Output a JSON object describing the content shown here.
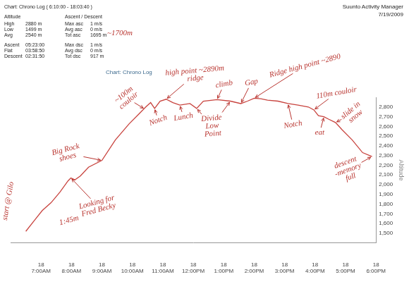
{
  "header": {
    "title": "Chart: Chrono Log ( 6:10:00 - 18:03:40 )",
    "app": "Suunto Activity Manager",
    "date": "7/19/2009",
    "note": "~1700m",
    "tables": [
      {
        "heading": "Altitude",
        "rows": [
          [
            "High",
            "2880 m"
          ],
          [
            "Low",
            "1499 m"
          ],
          [
            "Avg",
            "2540 m"
          ],
          [
            "Ascent",
            "05:23:00"
          ],
          [
            "Flat",
            "03:58:50"
          ],
          [
            "Descent",
            "02:31:50"
          ]
        ]
      },
      {
        "heading": "Ascent / Descent",
        "rows": [
          [
            "Max asc",
            "1 m/s"
          ],
          [
            "Avg asc",
            "0 m/s"
          ],
          [
            "Tot asc",
            "1695 m"
          ],
          [
            "Max dsc",
            "1 m/s"
          ],
          [
            "Avg dsc",
            "0 m/s"
          ],
          [
            "Tot dsc",
            "917 m"
          ]
        ]
      }
    ]
  },
  "chart_data": {
    "type": "line",
    "title": "Chart: Chrono Log",
    "y_label": "Altitude",
    "color": "#c8433e",
    "grid": false,
    "x": [
      6.5,
      6.78,
      7.04,
      7.33,
      7.62,
      7.89,
      7.98,
      8.11,
      8.29,
      8.56,
      9.0,
      9.44,
      9.89,
      10.22,
      10.44,
      10.6,
      10.73,
      10.91,
      11.11,
      11.33,
      11.56,
      11.89,
      12.11,
      12.33,
      12.78,
      13.22,
      13.56,
      13.78,
      14.0,
      14.22,
      14.44,
      14.78,
      15.11,
      15.44,
      15.78,
      15.96,
      16.11,
      16.29,
      16.44,
      16.67,
      16.89,
      17.22,
      17.56,
      17.87
    ],
    "values": [
      1520,
      1632,
      1734,
      1815,
      1924,
      2041,
      2070,
      2050,
      2090,
      2180,
      2250,
      2460,
      2625,
      2730,
      2800,
      2845,
      2785,
      2860,
      2880,
      2845,
      2820,
      2835,
      2785,
      2860,
      2875,
      2860,
      2835,
      2860,
      2890,
      2885,
      2870,
      2860,
      2835,
      2820,
      2800,
      2770,
      2710,
      2700,
      2675,
      2640,
      2565,
      2460,
      2330,
      2290
    ],
    "xlim": [
      6,
      18
    ],
    "xticks": [
      {
        "value": 7,
        "label": [
          "18",
          "7:00AM"
        ]
      },
      {
        "value": 8,
        "label": [
          "18",
          "8:00AM"
        ]
      },
      {
        "value": 9,
        "label": [
          "18",
          "9:00AM"
        ]
      },
      {
        "value": 10,
        "label": [
          "18",
          "10:00AM"
        ]
      },
      {
        "value": 11,
        "label": [
          "18",
          "11:00AM"
        ]
      },
      {
        "value": 12,
        "label": [
          "18",
          "12:00PM"
        ]
      },
      {
        "value": 13,
        "label": [
          "18",
          "1:00PM"
        ]
      },
      {
        "value": 14,
        "label": [
          "18",
          "2:00PM"
        ]
      },
      {
        "value": 15,
        "label": [
          "18",
          "3:00PM"
        ]
      },
      {
        "value": 16,
        "label": [
          "18",
          "4:00PM"
        ]
      },
      {
        "value": 17,
        "label": [
          "18",
          "5:00PM"
        ]
      },
      {
        "value": 18,
        "label": [
          "18",
          "6:00PM"
        ]
      }
    ],
    "ylim": [
      1400,
      2900
    ],
    "yticks": [
      {
        "value": 1500,
        "label": "1,500"
      },
      {
        "value": 1600,
        "label": "1,600"
      },
      {
        "value": 1700,
        "label": "1,700"
      },
      {
        "value": 1800,
        "label": "1,800"
      },
      {
        "value": 1900,
        "label": "1,900"
      },
      {
        "value": 2000,
        "label": "2,000"
      },
      {
        "value": 2100,
        "label": "2,100"
      },
      {
        "value": 2200,
        "label": "2,200"
      },
      {
        "value": 2300,
        "label": "2,300"
      },
      {
        "value": 2400,
        "label": "2,400"
      },
      {
        "value": 2500,
        "label": "2,500"
      },
      {
        "value": 2600,
        "label": "2,600"
      },
      {
        "value": 2700,
        "label": "2,700"
      },
      {
        "value": 2800,
        "label": "2,800"
      }
    ],
    "annotations": [
      {
        "text": [
          "start @ Gilo"
        ],
        "points": [
          [
            6.5,
            1520
          ]
        ]
      },
      {
        "text": [
          "1:45m"
        ],
        "points": [
          [
            7.04,
            1734
          ]
        ]
      },
      {
        "text": [
          "Looking for",
          "Fred Becky"
        ],
        "points": [
          [
            7.98,
            2070
          ]
        ]
      },
      {
        "text": [
          "Big Rock",
          "shoes"
        ],
        "points": [
          [
            9.0,
            2250
          ]
        ]
      },
      {
        "text": [
          "~100m",
          "couloir"
        ],
        "points": [
          [
            10.4,
            2780
          ]
        ]
      },
      {
        "text": [
          "Notch"
        ],
        "points": [
          [
            10.73,
            2785
          ]
        ]
      },
      {
        "text": [
          "high point ~2890m",
          "ridge"
        ],
        "points": [
          [
            11.11,
            2880
          ]
        ]
      },
      {
        "text": [
          "Lunch"
        ],
        "points": [
          [
            11.56,
            2820
          ]
        ]
      },
      {
        "text": [
          "Divide",
          "Low",
          "Point"
        ],
        "points": [
          [
            12.11,
            2785
          ],
          [
            13.22,
            2860
          ]
        ]
      },
      {
        "text": [
          "climb"
        ],
        "points": [
          [
            12.78,
            2875
          ]
        ]
      },
      {
        "text": [
          "Gap"
        ],
        "points": [
          [
            13.56,
            2835
          ]
        ]
      },
      {
        "text": [
          "Ridge high point ~2890"
        ],
        "points": [
          [
            14.0,
            2890
          ]
        ]
      },
      {
        "text": [
          "Notch"
        ],
        "points": [
          [
            15.11,
            2835
          ]
        ]
      },
      {
        "text": [
          "110m couloir"
        ],
        "points": [
          [
            15.96,
            2770
          ]
        ]
      },
      {
        "text": [
          "eat"
        ],
        "points": [
          [
            16.29,
            2700
          ]
        ]
      },
      {
        "text": [
          "slide in",
          "snow"
        ],
        "points": [
          [
            16.67,
            2640
          ]
        ]
      },
      {
        "text": [
          "descent",
          "-memory",
          "full"
        ],
        "points": [
          [
            17.87,
            2290
          ]
        ]
      }
    ]
  }
}
